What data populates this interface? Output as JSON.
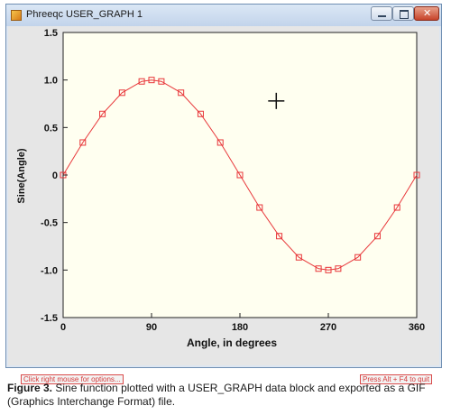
{
  "window": {
    "title": "Phreeqc USER_GRAPH 1"
  },
  "status": {
    "left": "Click right mouse for options...",
    "right": "Press Alt + F4 to quit"
  },
  "caption": {
    "label": "Figure 3.",
    "text": " Sine function plotted with a USER_GRAPH data block and exported as a GIF (Graphics Interchange Format) file."
  },
  "colors": {
    "series": "#e8373a",
    "plot_background": "#fffff0",
    "frame": "#e6e6e6"
  },
  "icons": {
    "app": "phreeqc-graph-icon",
    "cursor": "crosshair-cursor-icon"
  },
  "chart_data": {
    "type": "line",
    "title": "",
    "xlabel": "Angle, in degrees",
    "ylabel": "Sine(Angle)",
    "xlim": [
      0,
      360
    ],
    "ylim": [
      -1.5,
      1.5
    ],
    "x_ticks": [
      "0",
      "90",
      "180",
      "270",
      "360"
    ],
    "y_ticks": [
      "1.5",
      "1.0",
      "0.5",
      "0",
      "-0.5",
      "-1.0",
      "-1.5"
    ],
    "grid": true,
    "legend": "none",
    "series": [
      {
        "marker": "open-square",
        "x": [
          0,
          20,
          40,
          60,
          80,
          90,
          100,
          120,
          140,
          160,
          180,
          200,
          220,
          240,
          260,
          270,
          280,
          300,
          320,
          340,
          360
        ],
        "y": [
          0,
          0.342,
          0.643,
          0.866,
          0.985,
          1.0,
          0.985,
          0.866,
          0.643,
          0.342,
          0,
          -0.342,
          -0.643,
          -0.866,
          -0.985,
          -1.0,
          -0.985,
          -0.866,
          -0.643,
          -0.342,
          0
        ]
      }
    ],
    "cursor": {
      "x": 217,
      "y": 0.78
    }
  }
}
